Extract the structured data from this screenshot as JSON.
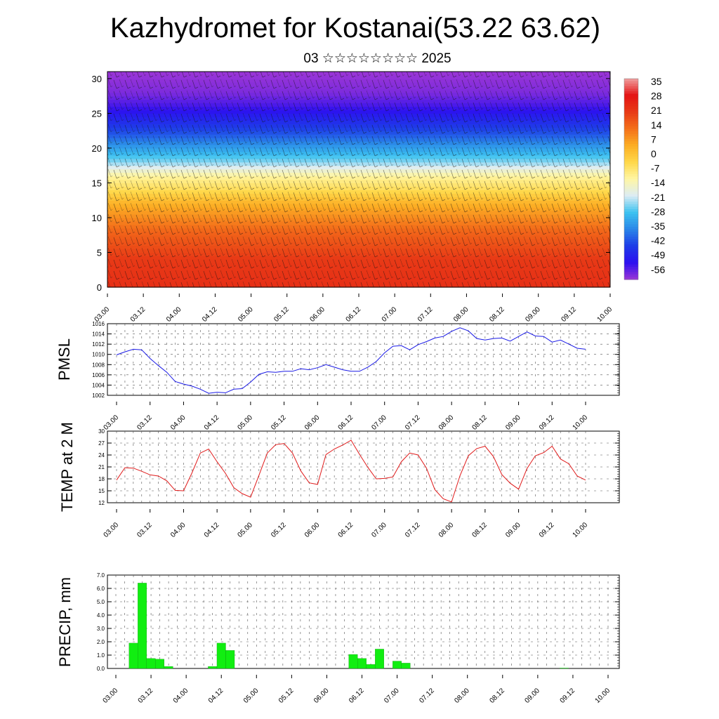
{
  "header": {
    "title": "Kazhydromet for Kostanai(53.22 63.62)",
    "subtitle": "03 ☆☆☆☆☆☆☆☆ 2025"
  },
  "panels": {
    "pmsl_label": "PMSL",
    "temp_label": "TEMP at 2 M",
    "precip_label": "PRECIP, mm"
  },
  "chart_data": [
    {
      "type": "heatmap",
      "title": "",
      "xlabel": "",
      "ylabel": "",
      "x_ticks": [
        "03.00",
        "03.12",
        "04.00",
        "04.12",
        "05.00",
        "05.12",
        "06.00",
        "06.12",
        "07.00",
        "07.12",
        "08.00",
        "08.12",
        "09.00",
        "09.12",
        "10.00"
      ],
      "ylim": [
        0,
        31
      ],
      "y_ticks": [
        0,
        5,
        10,
        15,
        20,
        25,
        30
      ],
      "colorbar_labels": [
        "35",
        "28",
        "21",
        "14",
        "7",
        "0",
        "-7",
        "-14",
        "-21",
        "-28",
        "-35",
        "-42",
        "-49",
        "-56"
      ],
      "colormap": [
        "#9a35d6",
        "#2c10f0",
        "#1e3ce8",
        "#2a86e8",
        "#3cc2f0",
        "#dcecf4",
        "#fff6a4",
        "#ffd84a",
        "#fcae24",
        "#f4701a",
        "#e83a16",
        "#e41414",
        "#f0a0a0"
      ],
      "overlay": "wind barbs",
      "temperature_profile": {
        "levels": [
          0,
          4,
          8,
          12,
          14,
          16,
          18,
          20,
          22,
          24,
          26,
          28,
          31
        ],
        "values": [
          22,
          20,
          14,
          4,
          -4,
          -10,
          -22,
          -30,
          -38,
          -44,
          -50,
          -54,
          -56
        ]
      }
    },
    {
      "type": "line",
      "title": "",
      "ylabel": "PMSL",
      "ylim": [
        1002,
        1016
      ],
      "y_ticks": [
        "1002",
        "1004",
        "1006",
        "1008",
        "1010",
        "1012",
        "1014",
        "1016"
      ],
      "x_ticks": [
        "03.00",
        "03.12",
        "04.00",
        "04.12",
        "05.00",
        "05.12",
        "06.00",
        "06.12",
        "07.00",
        "07.12",
        "08.00",
        "08.12",
        "09.00",
        "09.12",
        "10.00"
      ],
      "x": [
        0,
        1,
        2,
        3,
        4,
        5,
        6,
        7,
        8,
        9,
        10,
        11,
        12,
        13,
        14,
        15,
        16,
        17,
        18,
        19,
        20,
        21,
        22,
        23,
        24,
        25,
        26,
        27,
        28,
        29,
        30,
        31,
        32,
        33,
        34,
        35,
        36,
        37,
        38,
        39,
        40,
        41,
        42,
        43,
        44,
        45,
        46,
        47,
        48,
        49,
        50,
        51,
        52,
        53,
        54,
        55,
        56
      ],
      "color": "#1a1ae6",
      "values": [
        1009.9,
        1010.5,
        1011.0,
        1010.9,
        1009.2,
        1007.8,
        1006.5,
        1004.7,
        1004.2,
        1003.8,
        1003.2,
        1002.4,
        1002.6,
        1002.5,
        1003.2,
        1003.3,
        1004.6,
        1006.1,
        1006.6,
        1006.5,
        1006.7,
        1006.7,
        1007.2,
        1007.0,
        1007.4,
        1008.0,
        1007.5,
        1007.0,
        1006.7,
        1006.7,
        1007.5,
        1008.6,
        1010.3,
        1011.6,
        1011.7,
        1010.9,
        1011.9,
        1012.5,
        1013.2,
        1013.5,
        1014.5,
        1015.2,
        1014.6,
        1013.1,
        1012.8,
        1013.1,
        1013.2,
        1012.6,
        1013.5,
        1014.4,
        1013.6,
        1013.5,
        1012.4,
        1012.8,
        1012.0,
        1011.2,
        1011.0
      ]
    },
    {
      "type": "line",
      "title": "",
      "ylabel": "TEMP at 2 M",
      "ylim": [
        12,
        30
      ],
      "y_ticks": [
        "12",
        "15",
        "18",
        "21",
        "24",
        "27",
        "30"
      ],
      "x_ticks": [
        "03.00",
        "03.12",
        "04.00",
        "04.12",
        "05.00",
        "05.12",
        "06.00",
        "06.12",
        "07.00",
        "07.12",
        "08.00",
        "08.12",
        "09.00",
        "09.12",
        "10.00"
      ],
      "x": [
        0,
        1,
        2,
        3,
        4,
        5,
        6,
        7,
        8,
        9,
        10,
        11,
        12,
        13,
        14,
        15,
        16,
        17,
        18,
        19,
        20,
        21,
        22,
        23,
        24,
        25,
        26,
        27,
        28,
        29,
        30,
        31,
        32,
        33,
        34,
        35,
        36,
        37,
        38,
        39,
        40,
        41,
        42,
        43,
        44,
        45,
        46,
        47,
        48,
        49,
        50,
        51,
        52,
        53,
        54,
        55,
        56
      ],
      "color": "#e01a1a",
      "values": [
        17.7,
        20.8,
        20.7,
        19.9,
        19.0,
        18.7,
        17.5,
        15.1,
        15.0,
        19.5,
        24.5,
        25.5,
        22.3,
        19.4,
        15.8,
        14.3,
        13.4,
        18.9,
        24.5,
        26.6,
        26.9,
        24.5,
        20.0,
        17.0,
        16.6,
        24.1,
        25.5,
        26.5,
        27.7,
        24.2,
        20.9,
        18.0,
        18.1,
        18.5,
        22.3,
        24.5,
        24.0,
        20.7,
        15.3,
        13.0,
        12.2,
        18.8,
        23.8,
        25.6,
        26.2,
        23.6,
        19.1,
        16.9,
        15.4,
        20.6,
        23.8,
        24.6,
        26.2,
        23.0,
        21.8,
        18.7,
        17.7
      ]
    },
    {
      "type": "bar",
      "title": "",
      "ylabel": "PRECIP, mm",
      "ylim": [
        0,
        7
      ],
      "y_ticks": [
        "0.0",
        "1.0",
        "2.0",
        "3.0",
        "4.0",
        "5.0",
        "6.0",
        "7.0"
      ],
      "x_ticks": [
        "03.00",
        "03.12",
        "04.00",
        "04.12",
        "05.00",
        "05.12",
        "06.00",
        "06.12",
        "07.00",
        "07.12",
        "08.00",
        "08.12",
        "09.00",
        "09.12",
        "10.00"
      ],
      "color": "#11ee11",
      "values": [
        0,
        0,
        1.9,
        6.4,
        0.75,
        0.7,
        0.15,
        0,
        0,
        0,
        0,
        0.15,
        1.9,
        1.35,
        0,
        0,
        0,
        0,
        0,
        0,
        0,
        0,
        0,
        0,
        0,
        0,
        0,
        1.05,
        0.75,
        0.3,
        1.45,
        0,
        0.55,
        0.4,
        0,
        0,
        0,
        0,
        0,
        0,
        0,
        0,
        0,
        0,
        0,
        0,
        0,
        0,
        0,
        0,
        0,
        0.03,
        0,
        0,
        0,
        0,
        0
      ]
    }
  ]
}
